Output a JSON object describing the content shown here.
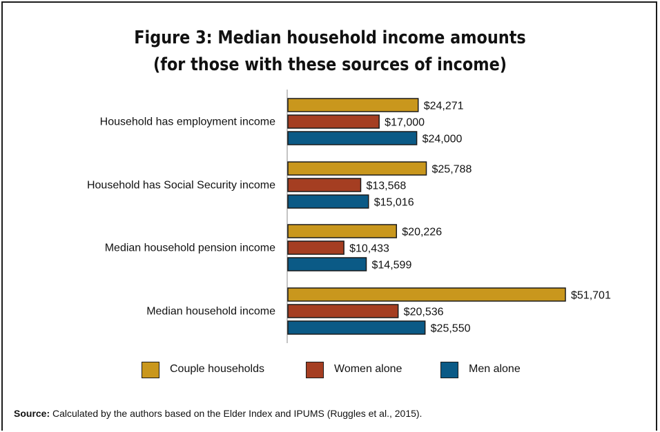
{
  "chart_data": {
    "type": "bar",
    "orientation": "horizontal",
    "title_line1": "Figure 3: Median household income amounts",
    "title_line2": "(for those with these sources of income)",
    "categories": [
      "Household has employment income",
      "Household has Social Security income",
      "Median household pension income",
      "Median household income"
    ],
    "series": [
      {
        "name": "Couple households",
        "color": "#c9971d",
        "values": [
          24271,
          25788,
          20226,
          51701
        ],
        "labels": [
          "$24,271",
          "$25,788",
          "$20,226",
          "$51,701"
        ]
      },
      {
        "name": "Women alone",
        "color": "#a53e22",
        "values": [
          17000,
          13568,
          10433,
          20536
        ],
        "labels": [
          "$17,000",
          "$13,568",
          "$10,433",
          "$20,536"
        ]
      },
      {
        "name": "Men alone",
        "color": "#0b5a86",
        "values": [
          24000,
          15016,
          14599,
          25550
        ],
        "labels": [
          "$24,000",
          "$15,016",
          "$14,599",
          "$25,550"
        ]
      }
    ],
    "xlim": [
      0,
      52000
    ],
    "grid": false,
    "legend_position": "bottom"
  },
  "source": {
    "label": "Source:",
    "text": " Calculated by the authors based on the Elder Index and IPUMS (Ruggles et al., 2015)."
  }
}
